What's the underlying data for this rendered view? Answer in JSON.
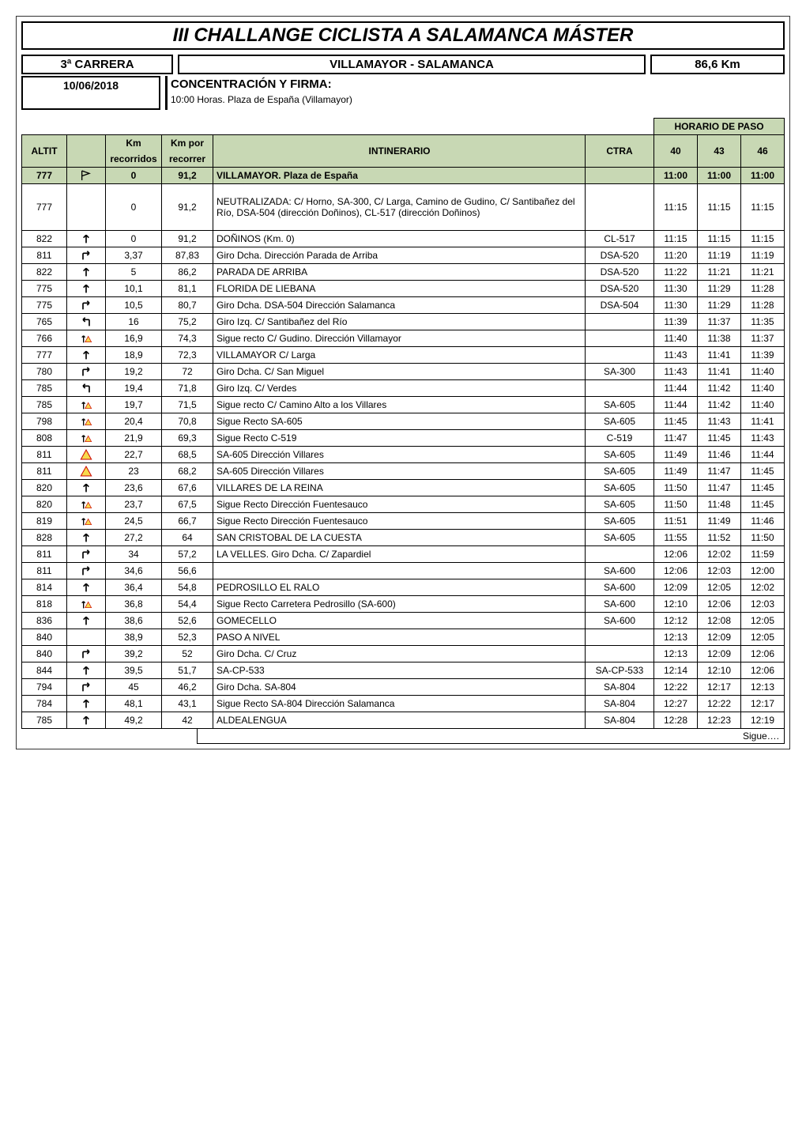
{
  "title": "III CHALLANGE CICLISTA A SALAMANCA MÁSTER",
  "header": {
    "left": "3ª CARRERA",
    "mid": "VILLAMAYOR - SALAMANCA",
    "right": "86,6 Km",
    "date": "10/06/2018",
    "conc_title": "CONCENTRACIÓN Y FIRMA:",
    "conc_sub": "10:00 Horas.  Plaza de España (Villamayor)"
  },
  "table_headers": {
    "horario": "HORARIO DE PASO",
    "altit": "ALTIT",
    "km": "Km recorridos",
    "km_line1": "Km",
    "km_line2": "recorridos",
    "kmr_line1": "Km por",
    "kmr_line2": "recorrer",
    "itin": "INTINERARIO",
    "ctra": "CTRA",
    "h40": "40",
    "h43": "43",
    "h46": "46"
  },
  "first_row": {
    "altit": "777",
    "icon": "flag",
    "km": "0",
    "kmr": "91,2",
    "itin": "VILLAMAYOR. Plaza de España",
    "ctra": "",
    "h40": "11:00",
    "h43": "11:00",
    "h46": "11:00"
  },
  "rows": [
    {
      "altit": "777",
      "icon": "",
      "km": "0",
      "kmr": "91,2",
      "itin": "NEUTRALIZADA: C/ Horno, SA-300, C/ Larga, Camino de Gudino, C/ Santibañez del Río, DSA-504 (dirección Doñinos), CL-517 (dirección Doñinos)",
      "ctra": "",
      "h40": "11:15",
      "h43": "11:15",
      "h46": "11:15"
    },
    {
      "altit": "822",
      "icon": "up",
      "km": "0",
      "kmr": "91,2",
      "itin": "DOÑINOS (Km. 0)",
      "ctra": "CL-517",
      "h40": "11:15",
      "h43": "11:15",
      "h46": "11:15"
    },
    {
      "altit": "811",
      "icon": "right",
      "km": "3,37",
      "kmr": "87,83",
      "itin": "Giro Dcha. Dirección Parada de Arriba",
      "ctra": "DSA-520",
      "h40": "11:20",
      "h43": "11:19",
      "h46": "11:19"
    },
    {
      "altit": "822",
      "icon": "up",
      "km": "5",
      "kmr": "86,2",
      "itin": "PARADA DE ARRIBA",
      "ctra": "DSA-520",
      "h40": "11:22",
      "h43": "11:21",
      "h46": "11:21"
    },
    {
      "altit": "775",
      "icon": "up",
      "km": "10,1",
      "kmr": "81,1",
      "itin": "FLORIDA DE LIEBANA",
      "ctra": "DSA-520",
      "h40": "11:30",
      "h43": "11:29",
      "h46": "11:28"
    },
    {
      "altit": "775",
      "icon": "right",
      "km": "10,5",
      "kmr": "80,7",
      "itin": "Giro Dcha. DSA-504 Dirección Salamanca",
      "ctra": "DSA-504",
      "h40": "11:30",
      "h43": "11:29",
      "h46": "11:28"
    },
    {
      "altit": "765",
      "icon": "left",
      "km": "16",
      "kmr": "75,2",
      "itin": "Giro Izq. C/ Santibañez del Río",
      "ctra": "",
      "h40": "11:39",
      "h43": "11:37",
      "h46": "11:35"
    },
    {
      "altit": "766",
      "icon": "up-warn",
      "km": "16,9",
      "kmr": "74,3",
      "itin": "Sigue recto C/ Gudino. Dirección Villamayor",
      "ctra": "",
      "h40": "11:40",
      "h43": "11:38",
      "h46": "11:37"
    },
    {
      "altit": "777",
      "icon": "up",
      "km": "18,9",
      "kmr": "72,3",
      "itin": "VILLAMAYOR C/ Larga",
      "ctra": "",
      "h40": "11:43",
      "h43": "11:41",
      "h46": "11:39"
    },
    {
      "altit": "780",
      "icon": "right",
      "km": "19,2",
      "kmr": "72",
      "itin": "Giro Dcha. C/ San Miguel",
      "ctra": "SA-300",
      "h40": "11:43",
      "h43": "11:41",
      "h46": "11:40"
    },
    {
      "altit": "785",
      "icon": "left",
      "km": "19,4",
      "kmr": "71,8",
      "itin": "Giro Izq. C/ Verdes",
      "ctra": "",
      "h40": "11:44",
      "h43": "11:42",
      "h46": "11:40"
    },
    {
      "altit": "785",
      "icon": "up-warn",
      "km": "19,7",
      "kmr": "71,5",
      "itin": "Sigue recto C/ Camino Alto a los Villares",
      "ctra": "SA-605",
      "h40": "11:44",
      "h43": "11:42",
      "h46": "11:40"
    },
    {
      "altit": "798",
      "icon": "up-warn",
      "km": "20,4",
      "kmr": "70,8",
      "itin": "Sigue Recto SA-605",
      "ctra": "SA-605",
      "h40": "11:45",
      "h43": "11:43",
      "h46": "11:41"
    },
    {
      "altit": "808",
      "icon": "up-warn",
      "km": "21,9",
      "kmr": "69,3",
      "itin": "Sigue Recto C-519",
      "ctra": "C-519",
      "h40": "11:47",
      "h43": "11:45",
      "h46": "11:43"
    },
    {
      "altit": "811",
      "icon": "warn",
      "km": "22,7",
      "kmr": "68,5",
      "itin": "SA-605 Dirección Villares",
      "ctra": "SA-605",
      "h40": "11:49",
      "h43": "11:46",
      "h46": "11:44"
    },
    {
      "altit": "811",
      "icon": "warn",
      "km": "23",
      "kmr": "68,2",
      "itin": "SA-605 Dirección Villares",
      "ctra": "SA-605",
      "h40": "11:49",
      "h43": "11:47",
      "h46": "11:45"
    },
    {
      "altit": "820",
      "icon": "up",
      "km": "23,6",
      "kmr": "67,6",
      "itin": "VILLARES DE LA REINA",
      "ctra": "SA-605",
      "h40": "11:50",
      "h43": "11:47",
      "h46": "11:45"
    },
    {
      "altit": "820",
      "icon": "up-warn",
      "km": "23,7",
      "kmr": "67,5",
      "itin": "Sigue Recto Dirección Fuentesauco",
      "ctra": "SA-605",
      "h40": "11:50",
      "h43": "11:48",
      "h46": "11:45"
    },
    {
      "altit": "819",
      "icon": "up-warn",
      "km": "24,5",
      "kmr": "66,7",
      "itin": "Sigue Recto Dirección Fuentesauco",
      "ctra": "SA-605",
      "h40": "11:51",
      "h43": "11:49",
      "h46": "11:46"
    },
    {
      "altit": "828",
      "icon": "up",
      "km": "27,2",
      "kmr": "64",
      "itin": "SAN CRISTOBAL DE LA CUESTA",
      "ctra": "SA-605",
      "h40": "11:55",
      "h43": "11:52",
      "h46": "11:50"
    },
    {
      "altit": "811",
      "icon": "right",
      "km": "34",
      "kmr": "57,2",
      "itin": "LA VELLES. Giro Dcha. C/ Zapardiel",
      "ctra": "",
      "h40": "12:06",
      "h43": "12:02",
      "h46": "11:59"
    },
    {
      "altit": "811",
      "icon": "right",
      "km": "34,6",
      "kmr": "56,6",
      "itin": "",
      "ctra": "SA-600",
      "h40": "12:06",
      "h43": "12:03",
      "h46": "12:00"
    },
    {
      "altit": "814",
      "icon": "up",
      "km": "36,4",
      "kmr": "54,8",
      "itin": "PEDROSILLO EL RALO",
      "ctra": "SA-600",
      "h40": "12:09",
      "h43": "12:05",
      "h46": "12:02"
    },
    {
      "altit": "818",
      "icon": "up-warn",
      "km": "36,8",
      "kmr": "54,4",
      "itin": "Sigue Recto Carretera Pedrosillo (SA-600)",
      "ctra": "SA-600",
      "h40": "12:10",
      "h43": "12:06",
      "h46": "12:03"
    },
    {
      "altit": "836",
      "icon": "up",
      "km": "38,6",
      "kmr": "52,6",
      "itin": "GOMECELLO",
      "ctra": "SA-600",
      "h40": "12:12",
      "h43": "12:08",
      "h46": "12:05"
    },
    {
      "altit": "840",
      "icon": "",
      "km": "38,9",
      "kmr": "52,3",
      "itin": "PASO A NIVEL",
      "ctra": "",
      "h40": "12:13",
      "h43": "12:09",
      "h46": "12:05"
    },
    {
      "altit": "840",
      "icon": "right",
      "km": "39,2",
      "kmr": "52",
      "itin": "Giro Dcha. C/ Cruz",
      "ctra": "",
      "h40": "12:13",
      "h43": "12:09",
      "h46": "12:06"
    },
    {
      "altit": "844",
      "icon": "up",
      "km": "39,5",
      "kmr": "51,7",
      "itin": "SA-CP-533",
      "ctra": "SA-CP-533",
      "h40": "12:14",
      "h43": "12:10",
      "h46": "12:06"
    },
    {
      "altit": "794",
      "icon": "right",
      "km": "45",
      "kmr": "46,2",
      "itin": "Giro Dcha. SA-804",
      "ctra": "SA-804",
      "h40": "12:22",
      "h43": "12:17",
      "h46": "12:13"
    },
    {
      "altit": "784",
      "icon": "up",
      "km": "48,1",
      "kmr": "43,1",
      "itin": "Sigue Recto SA-804 Dirección Salamanca",
      "ctra": "SA-804",
      "h40": "12:27",
      "h43": "12:22",
      "h46": "12:17"
    },
    {
      "altit": "785",
      "icon": "up",
      "km": "49,2",
      "kmr": "42",
      "itin": "ALDEALENGUA",
      "ctra": "SA-804",
      "h40": "12:28",
      "h43": "12:23",
      "h46": "12:19"
    }
  ],
  "sigue": "Sigue….",
  "colors": {
    "header_bg": "#c8d8b4",
    "border": "#000000"
  }
}
